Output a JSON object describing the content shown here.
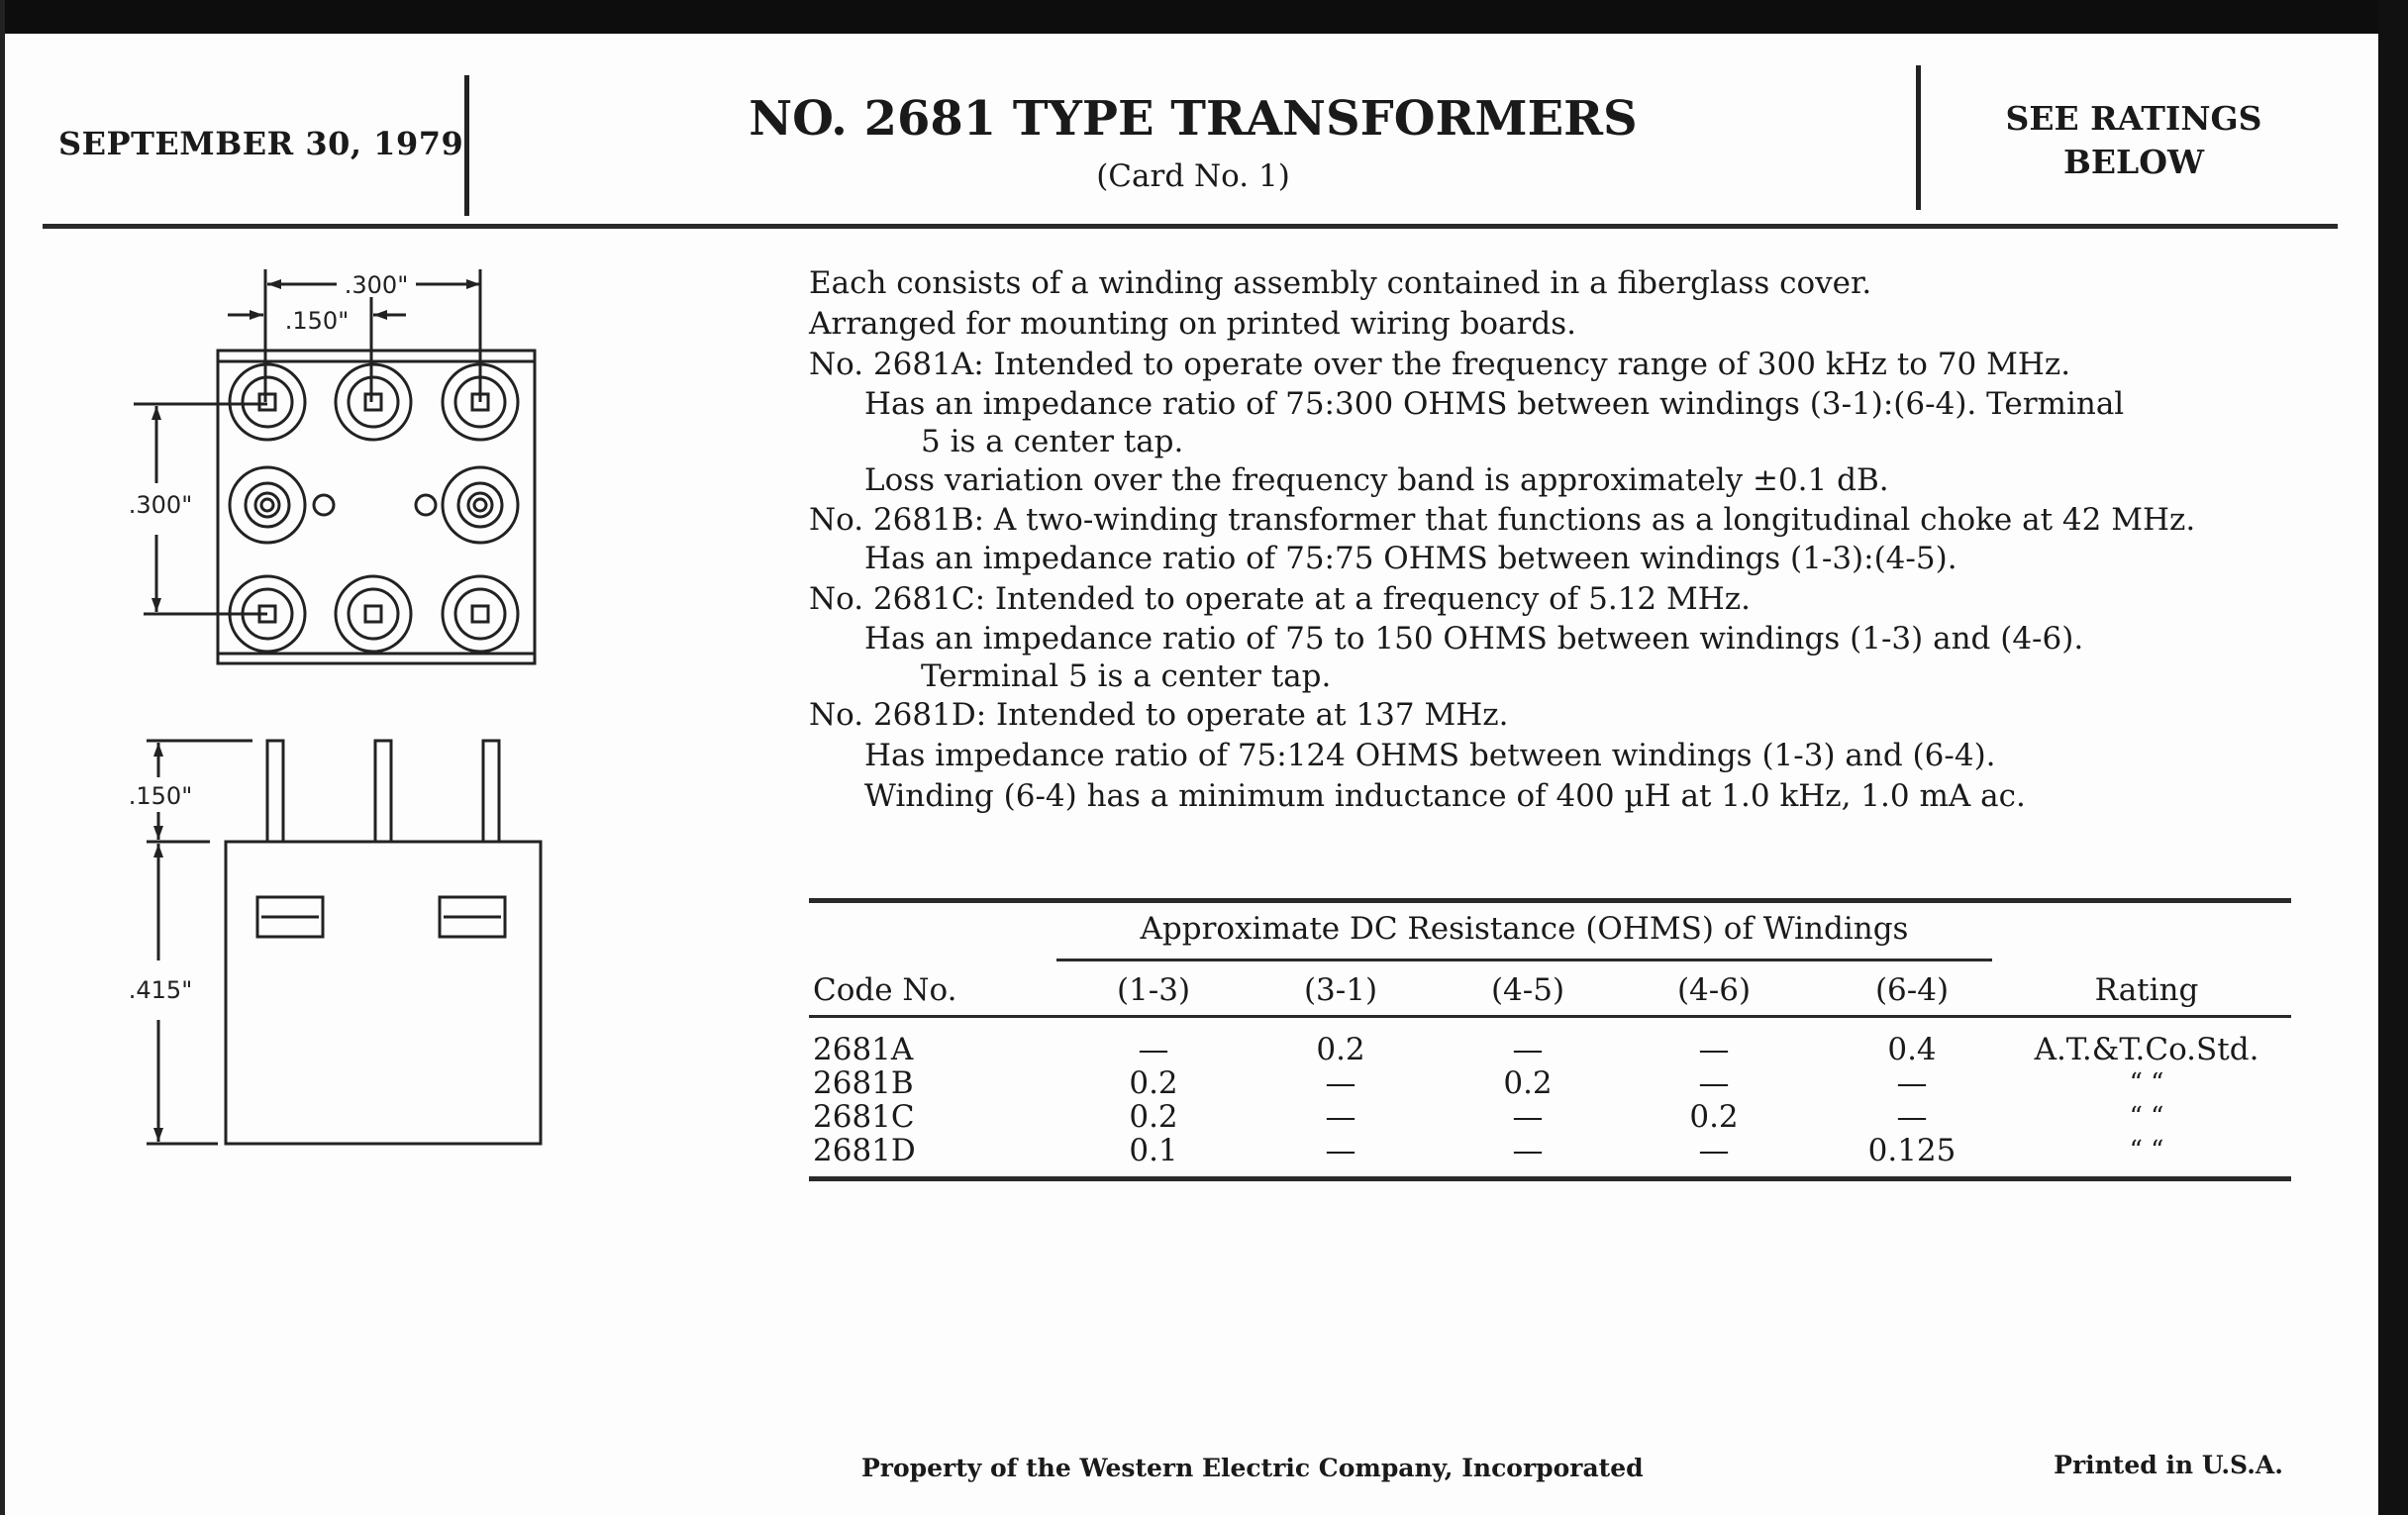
{
  "header": {
    "date": "SEPTEMBER 30, 1979",
    "title": "NO. 2681 TYPE TRANSFORMERS",
    "subtitle": "(Card No. 1)",
    "ratings_line1": "SEE RATINGS",
    "ratings_line2": "BELOW"
  },
  "drawing": {
    "top_width": ".300\"",
    "top_offset": ".150\"",
    "top_height": ".300\"",
    "pin_length": ".150\"",
    "body_height": ".415\""
  },
  "description": [
    "Each consists of a winding assembly contained in a fiberglass cover.",
    "Arranged for mounting on printed wiring boards.",
    "No. 2681A: Intended to operate over the frequency range of 300 kHz to 70 MHz.",
    "Has an impedance ratio of 75:300 OHMS between windings (3-1):(6-4). Terminal",
    "5 is a center tap.",
    "Loss variation over the frequency band is approximately ±0.1 dB.",
    "No. 2681B: A two-winding transformer that functions as a longitudinal choke at 42 MHz.",
    "Has an impedance ratio of 75:75 OHMS between windings (1-3):(4-5).",
    "No. 2681C: Intended to operate at a frequency of 5.12 MHz.",
    "Has an impedance ratio of 75 to 150 OHMS between windings (1-3) and (4-6).",
    "Terminal 5 is a center tap.",
    "No. 2681D: Intended to operate at 137 MHz.",
    "Has impedance ratio of 75:124 OHMS between windings (1-3) and (6-4).",
    "Winding (6-4) has a minimum inductance of 400 µH at 1.0 kHz, 1.0 mA ac."
  ],
  "table": {
    "group_header": "Approximate DC Resistance (OHMS) of Windings",
    "columns": [
      "Code No.",
      "(1-3)",
      "(3-1)",
      "(4-5)",
      "(4-6)",
      "(6-4)",
      "Rating"
    ],
    "rows": [
      [
        "2681A",
        "—",
        "0.2",
        "—",
        "—",
        "0.4",
        "A.T.&T.Co.Std."
      ],
      [
        "2681B",
        "0.2",
        "—",
        "0.2",
        "—",
        "—",
        "“        “"
      ],
      [
        "2681C",
        "0.2",
        "—",
        "—",
        "0.2",
        "—",
        "“        “"
      ],
      [
        "2681D",
        "0.1",
        "—",
        "—",
        "—",
        "0.125",
        "“        “"
      ]
    ]
  },
  "footer": {
    "property": "Property of the Western Electric Company, Incorporated",
    "printed": "Printed in U.S.A."
  }
}
